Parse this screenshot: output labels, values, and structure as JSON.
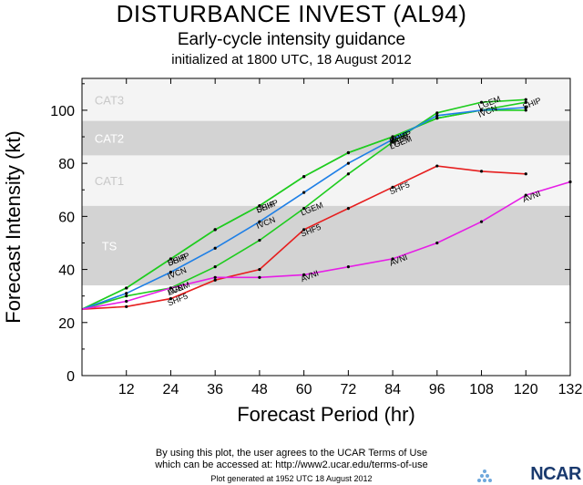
{
  "header": {
    "title": "DISTURBANCE INVEST (AL94)",
    "subtitle": "Early-cycle intensity guidance",
    "initialized": "initialized at 1800 UTC, 18 August 2012"
  },
  "footer": {
    "line1": "By using this plot, the user agrees to the UCAR Terms of Use",
    "line2": "which can be accessed at: http://www2.ucar.edu/terms-of-use",
    "line3": "Plot generated at 1952 UTC 18 August 2012",
    "logo_text": "NCAR"
  },
  "chart_data": {
    "type": "line",
    "xlabel": "Forecast Period (hr)",
    "ylabel": "Forecast Intensity (kt)",
    "xlim": [
      0,
      132
    ],
    "ylim": [
      0,
      112
    ],
    "xticks": [
      12,
      24,
      36,
      48,
      60,
      72,
      84,
      96,
      108,
      120,
      132
    ],
    "yticks": [
      0,
      20,
      40,
      60,
      80,
      100
    ],
    "categories_bands": [
      {
        "label": "TS",
        "y0": 34,
        "y1": 64,
        "color": "#d3d3d3"
      },
      {
        "label": "CAT1",
        "y0": 64,
        "y1": 83,
        "color": "#f4f4f4"
      },
      {
        "label": "CAT2",
        "y0": 83,
        "y1": 96,
        "color": "#d3d3d3"
      },
      {
        "label": "CAT3",
        "y0": 96,
        "y1": 112,
        "color": "#f4f4f4"
      }
    ],
    "series": [
      {
        "name": "SHIP",
        "color": "#1fcc1f",
        "x": [
          0,
          12,
          24,
          36,
          48,
          60,
          72,
          84,
          96,
          108,
          120
        ],
        "y": [
          25,
          33,
          44,
          55,
          64,
          75,
          84,
          90,
          97,
          100,
          103
        ],
        "labels_at": [
          24,
          48,
          84,
          120
        ]
      },
      {
        "name": "DSHP",
        "color": "#1fcc1f",
        "x": [
          0,
          12,
          24,
          36,
          48,
          60,
          72,
          84,
          96,
          108,
          120
        ],
        "y": [
          25,
          33,
          44,
          55,
          64,
          75,
          84,
          90,
          97,
          100,
          100
        ],
        "labels_at": [
          24,
          48,
          84
        ]
      },
      {
        "name": "LGEM",
        "color": "#1fcc1f",
        "x": [
          0,
          12,
          24,
          36,
          48,
          60,
          72,
          84,
          96,
          108,
          120
        ],
        "y": [
          25,
          30,
          33,
          41,
          51,
          63,
          76,
          88,
          99,
          103,
          104
        ],
        "labels_at": [
          24,
          60,
          84,
          108
        ]
      },
      {
        "name": "IVCN",
        "color": "#1e7fe6",
        "x": [
          0,
          12,
          24,
          36,
          48,
          60,
          72,
          84,
          96,
          108,
          120
        ],
        "y": [
          25,
          31,
          39,
          48,
          58,
          69,
          80,
          89,
          98,
          100,
          101
        ],
        "labels_at": [
          24,
          48,
          84,
          108
        ]
      },
      {
        "name": "SHF5",
        "color": "#e61e1e",
        "x": [
          0,
          12,
          24,
          36,
          48,
          60,
          72,
          84,
          96,
          108,
          120
        ],
        "y": [
          25,
          26,
          29,
          36,
          40,
          55,
          63,
          71,
          79,
          77,
          76
        ],
        "labels_at": [
          24,
          60,
          84
        ]
      },
      {
        "name": "AVNI",
        "color": "#e61ee6",
        "x": [
          0,
          12,
          24,
          36,
          48,
          60,
          72,
          84,
          96,
          108,
          120,
          132
        ],
        "y": [
          25,
          28,
          33,
          37,
          37,
          38,
          41,
          44,
          50,
          58,
          68,
          73
        ],
        "labels_at": [
          24,
          60,
          84,
          120
        ]
      }
    ]
  }
}
